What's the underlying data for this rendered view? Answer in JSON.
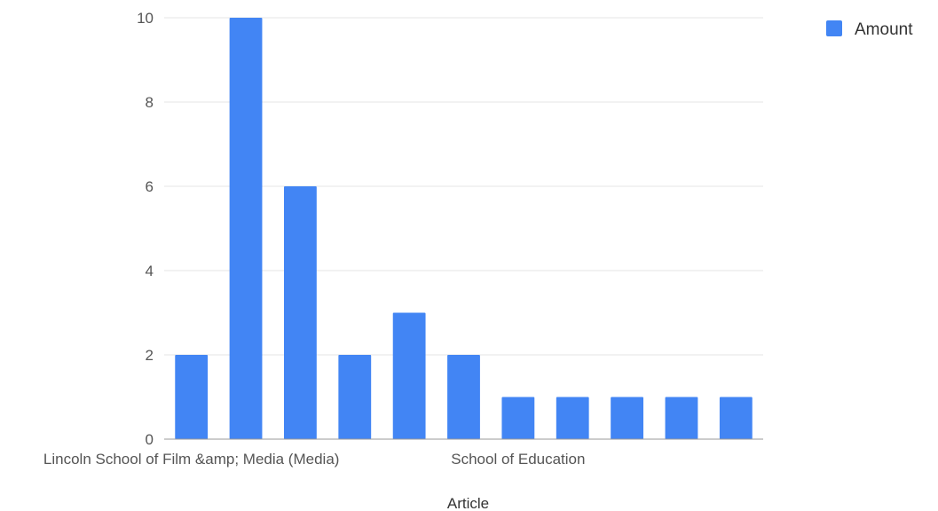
{
  "chart_data": {
    "type": "bar",
    "categories": [
      "Lincoln School of Film &amp; Media (Media)",
      "",
      "",
      "",
      "",
      "",
      "School of Education",
      "",
      "",
      "",
      ""
    ],
    "series": [
      {
        "name": "Amount",
        "values": [
          2,
          10,
          6,
          2,
          3,
          2,
          1,
          1,
          1,
          1,
          1
        ],
        "color": "#4285f4"
      }
    ],
    "xlabel": "Article",
    "ylabel": "",
    "ylim": [
      0,
      10
    ],
    "yticks": [
      0,
      2,
      4,
      6,
      8,
      10
    ],
    "x_tick_labels": [
      "Lincoln School of Film &amp; Media (Media)",
      "School of Education"
    ],
    "grid": true,
    "legend": {
      "position": "top-right",
      "entries": [
        "Amount"
      ]
    }
  }
}
